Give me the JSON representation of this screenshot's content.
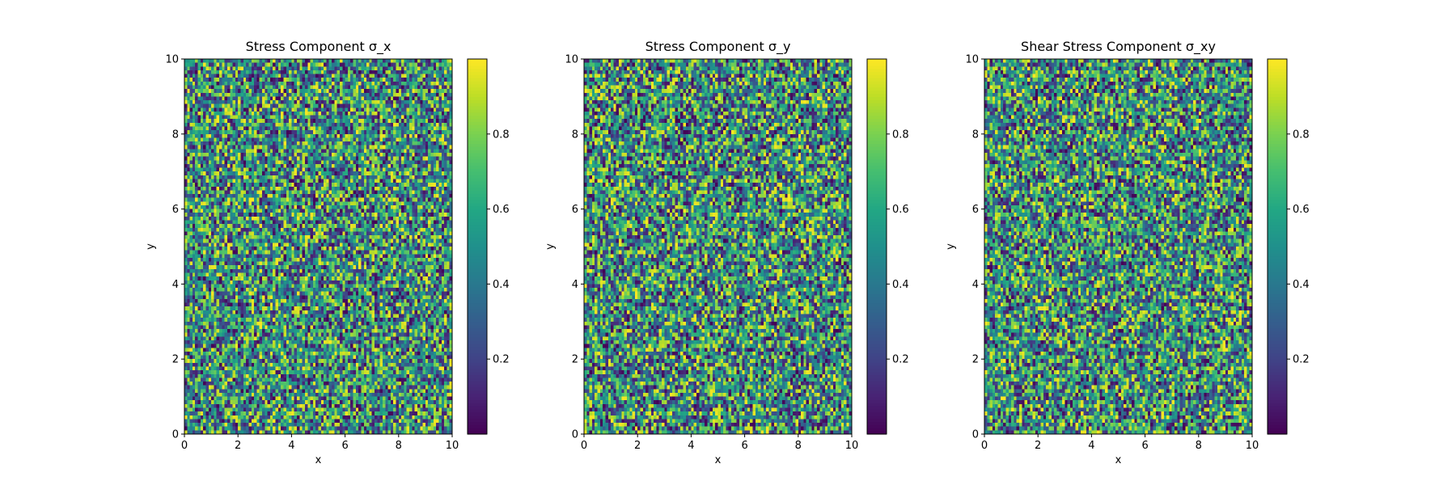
{
  "chart_data": [
    {
      "type": "heatmap",
      "title": "Stress Component σ_x",
      "xlabel": "x",
      "ylabel": "y",
      "xlim": [
        0,
        10
      ],
      "ylim": [
        0,
        10
      ],
      "xticks": [
        "0",
        "2",
        "4",
        "6",
        "8",
        "10"
      ],
      "yticks": [
        "0",
        "2",
        "4",
        "6",
        "8",
        "10"
      ],
      "grid": {
        "nx": 100,
        "ny": 100
      },
      "colormap": "viridis",
      "colorbar": {
        "range": [
          0,
          1
        ],
        "ticks": [
          "0.2",
          "0.4",
          "0.6",
          "0.8"
        ]
      },
      "values_description": "uniform random noise in [0, 1]",
      "seed": 11
    },
    {
      "type": "heatmap",
      "title": "Stress Component σ_y",
      "xlabel": "x",
      "ylabel": "y",
      "xlim": [
        0,
        10
      ],
      "ylim": [
        0,
        10
      ],
      "xticks": [
        "0",
        "2",
        "4",
        "6",
        "8",
        "10"
      ],
      "yticks": [
        "0",
        "2",
        "4",
        "6",
        "8",
        "10"
      ],
      "grid": {
        "nx": 100,
        "ny": 100
      },
      "colormap": "viridis",
      "colorbar": {
        "range": [
          0,
          1
        ],
        "ticks": [
          "0.2",
          "0.4",
          "0.6",
          "0.8"
        ]
      },
      "values_description": "uniform random noise in [0, 1]",
      "seed": 23
    },
    {
      "type": "heatmap",
      "title": "Shear Stress Component σ_xy",
      "xlabel": "x",
      "ylabel": "y",
      "xlim": [
        0,
        10
      ],
      "ylim": [
        0,
        10
      ],
      "xticks": [
        "0",
        "2",
        "4",
        "6",
        "8",
        "10"
      ],
      "yticks": [
        "0",
        "2",
        "4",
        "6",
        "8",
        "10"
      ],
      "grid": {
        "nx": 100,
        "ny": 100
      },
      "colormap": "viridis",
      "colorbar": {
        "range": [
          0,
          1
        ],
        "ticks": [
          "0.2",
          "0.4",
          "0.6",
          "0.8"
        ]
      },
      "values_description": "uniform random noise in [0, 1]",
      "seed": 37
    }
  ]
}
